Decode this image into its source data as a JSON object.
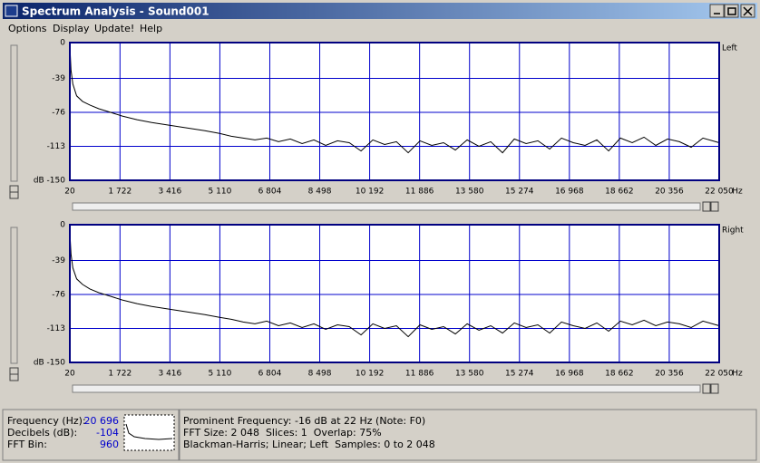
{
  "window": {
    "title": "Spectrum Analysis - Sound001"
  },
  "menu": [
    "Options",
    "Display",
    "Update!",
    "Help"
  ],
  "chart_data": [
    {
      "type": "line",
      "label": "Left",
      "x_unit": "Hz",
      "color": "#000000",
      "grid": true,
      "grid_color": "#0000cc",
      "xlim": [
        20,
        22050
      ],
      "xticks": [
        20,
        {
          "value": 1722,
          "label": "1 722"
        },
        {
          "value": 3416,
          "label": "3 416"
        },
        {
          "value": 5110,
          "label": "5 110"
        },
        {
          "value": 6804,
          "label": "6 804"
        },
        {
          "value": 8498,
          "label": "8 498"
        },
        {
          "value": 10192,
          "label": "10 192"
        },
        {
          "value": 11886,
          "label": "11 886"
        },
        {
          "value": 13580,
          "label": "13 580"
        },
        {
          "value": 15274,
          "label": "15 274"
        },
        {
          "value": 16968,
          "label": "16 968"
        },
        {
          "value": 18662,
          "label": "18 662"
        },
        {
          "value": 20356,
          "label": "20 356"
        },
        {
          "value": 22050,
          "label": "22 050"
        }
      ],
      "ylim": [
        -150,
        0
      ],
      "yticks": [
        0,
        -39,
        -76,
        -113,
        {
          "value": -150,
          "label": "dB -150"
        }
      ],
      "x": [
        20,
        60,
        120,
        250,
        450,
        700,
        1000,
        1400,
        1800,
        2300,
        2800,
        3400,
        4000,
        4600,
        5100,
        5500,
        5900,
        6300,
        6700,
        7100,
        7500,
        7900,
        8300,
        8700,
        9100,
        9500,
        9900,
        10300,
        10700,
        11100,
        11500,
        11900,
        12300,
        12700,
        13100,
        13500,
        13900,
        14300,
        14700,
        15100,
        15500,
        15900,
        16300,
        16700,
        17100,
        17500,
        17900,
        18300,
        18700,
        19100,
        19500,
        19900,
        20300,
        20700,
        21100,
        21500,
        22050
      ],
      "values": [
        -3,
        -30,
        -45,
        -58,
        -64,
        -68,
        -72,
        -76,
        -80,
        -84,
        -87,
        -90,
        -93,
        -96,
        -99,
        -102,
        -104,
        -106,
        -104,
        -108,
        -105,
        -110,
        -106,
        -112,
        -107,
        -109,
        -118,
        -106,
        -111,
        -108,
        -120,
        -107,
        -112,
        -109,
        -117,
        -106,
        -113,
        -108,
        -120,
        -105,
        -110,
        -107,
        -116,
        -104,
        -109,
        -112,
        -106,
        -118,
        -104,
        -109,
        -103,
        -112,
        -105,
        -108,
        -114,
        -104,
        -109
      ]
    },
    {
      "type": "line",
      "label": "Right",
      "x_unit": "Hz",
      "color": "#000000",
      "grid": true,
      "grid_color": "#0000cc",
      "xlim": [
        20,
        22050
      ],
      "xticks": [
        20,
        {
          "value": 1722,
          "label": "1 722"
        },
        {
          "value": 3416,
          "label": "3 416"
        },
        {
          "value": 5110,
          "label": "5 110"
        },
        {
          "value": 6804,
          "label": "6 804"
        },
        {
          "value": 8498,
          "label": "8 498"
        },
        {
          "value": 10192,
          "label": "10 192"
        },
        {
          "value": 11886,
          "label": "11 886"
        },
        {
          "value": 13580,
          "label": "13 580"
        },
        {
          "value": 15274,
          "label": "15 274"
        },
        {
          "value": 16968,
          "label": "16 968"
        },
        {
          "value": 18662,
          "label": "18 662"
        },
        {
          "value": 20356,
          "label": "20 356"
        },
        {
          "value": 22050,
          "label": "22 050"
        }
      ],
      "ylim": [
        -150,
        0
      ],
      "yticks": [
        0,
        -39,
        -76,
        -113,
        {
          "value": -150,
          "label": "dB -150"
        }
      ],
      "x": [
        20,
        60,
        120,
        250,
        450,
        700,
        1000,
        1400,
        1800,
        2300,
        2800,
        3400,
        4000,
        4600,
        5100,
        5500,
        5900,
        6300,
        6700,
        7100,
        7500,
        7900,
        8300,
        8700,
        9100,
        9500,
        9900,
        10300,
        10700,
        11100,
        11500,
        11900,
        12300,
        12700,
        13100,
        13500,
        13900,
        14300,
        14700,
        15100,
        15500,
        15900,
        16300,
        16700,
        17100,
        17500,
        17900,
        18300,
        18700,
        19100,
        19500,
        19900,
        20300,
        20700,
        21100,
        21500,
        22050
      ],
      "values": [
        -8,
        -32,
        -47,
        -59,
        -65,
        -70,
        -74,
        -78,
        -82,
        -86,
        -89,
        -92,
        -95,
        -98,
        -101,
        -103,
        -106,
        -108,
        -105,
        -110,
        -107,
        -112,
        -108,
        -114,
        -109,
        -111,
        -120,
        -108,
        -113,
        -110,
        -122,
        -109,
        -114,
        -111,
        -119,
        -108,
        -115,
        -110,
        -118,
        -107,
        -112,
        -109,
        -118,
        -106,
        -110,
        -113,
        -107,
        -116,
        -105,
        -109,
        -104,
        -110,
        -106,
        -108,
        -112,
        -105,
        -110
      ]
    }
  ],
  "status": {
    "readout": [
      {
        "label": "Frequency (Hz):",
        "value": "20 696"
      },
      {
        "label": "Decibels (dB):",
        "value": "-104"
      },
      {
        "label": "FFT Bin:",
        "value": "960"
      }
    ],
    "info": [
      "Prominent Frequency: -16 dB at 22 Hz (Note: F0)",
      "FFT Size: 2 048  Slices: 1  Overlap: 75%",
      "Blackman-Harris; Linear; Left  Samples: 0 to 2 048"
    ]
  }
}
